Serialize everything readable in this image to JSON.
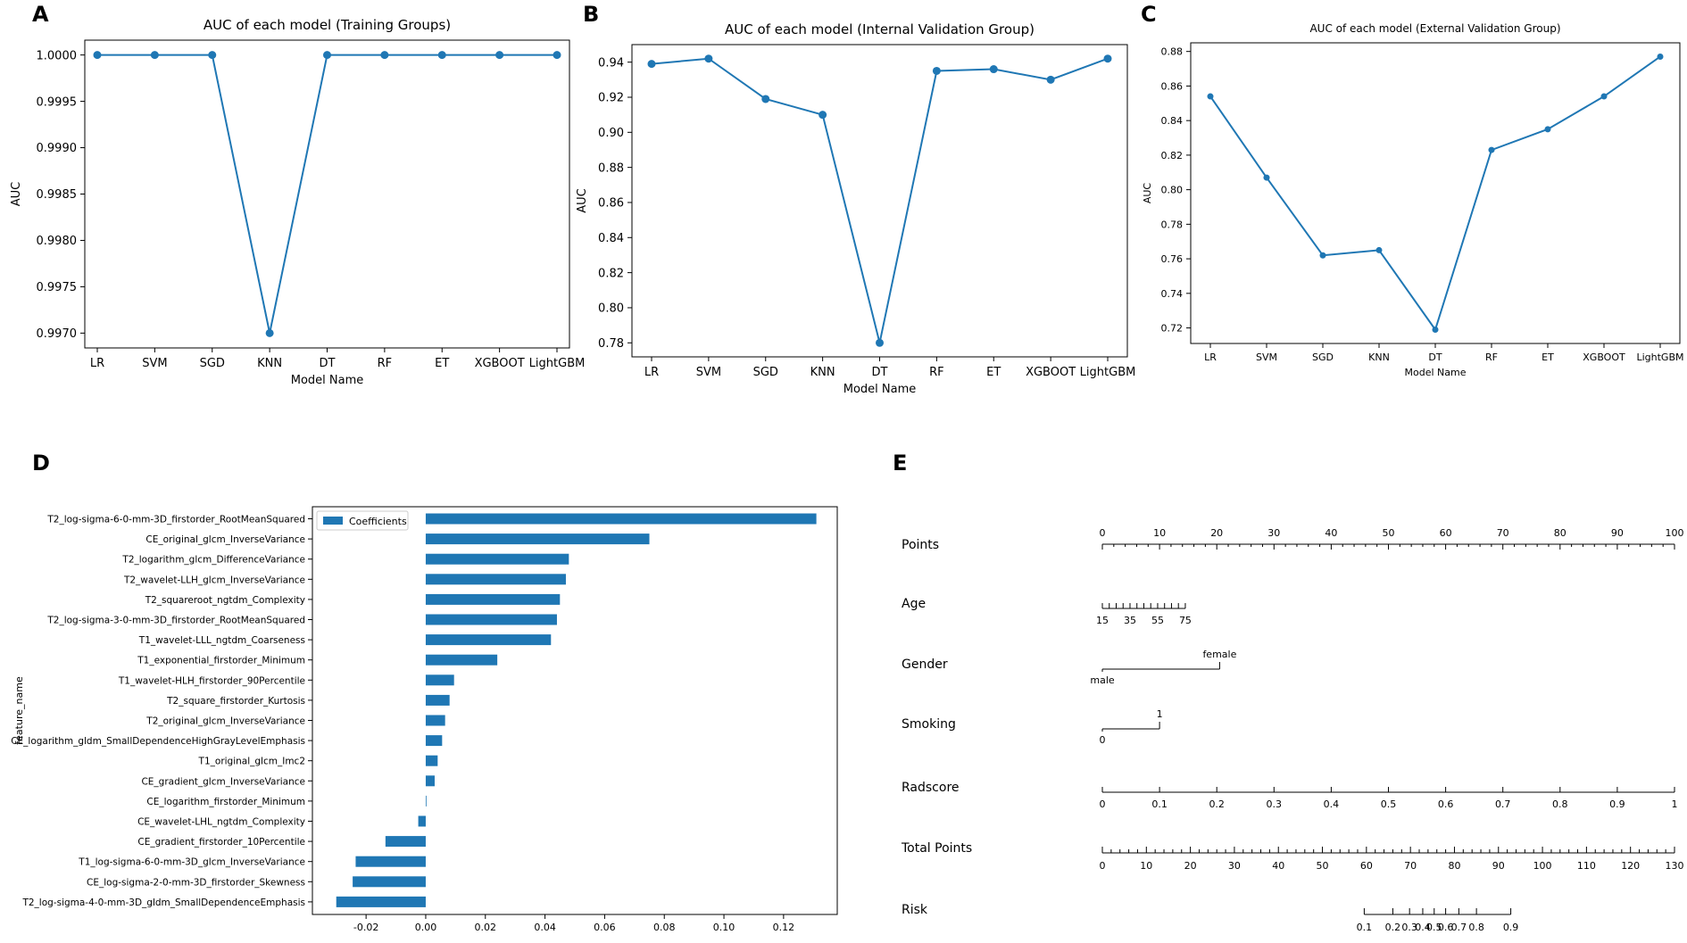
{
  "panel_labels": {
    "a": "A",
    "b": "B",
    "c": "C",
    "d": "D",
    "e": "E"
  },
  "chart_data": [
    {
      "type": "line",
      "title": "AUC of each model (Training Groups)",
      "xlabel": "Model Name",
      "ylabel": "AUC",
      "categories": [
        "LR",
        "SVM",
        "SGD",
        "KNN",
        "DT",
        "RF",
        "ET",
        "XGBOOT",
        "LightGBM"
      ],
      "values": [
        1.0,
        1.0,
        1.0,
        0.997,
        1.0,
        1.0,
        1.0,
        1.0,
        1.0
      ],
      "ylim": [
        0.99684,
        1.00016
      ],
      "yticks": [
        0.997,
        0.9975,
        0.998,
        0.9985,
        0.999,
        0.9995,
        1.0
      ],
      "ytick_labels": [
        "0.9970",
        "0.9975",
        "0.9980",
        "0.9985",
        "0.9990",
        "0.9995",
        "1.0000"
      ],
      "color": "#1f77b4"
    },
    {
      "type": "line",
      "title": "AUC of each model (Internal Validation Group)",
      "xlabel": "Model Name",
      "ylabel": "AUC",
      "categories": [
        "LR",
        "SVM",
        "SGD",
        "KNN",
        "DT",
        "RF",
        "ET",
        "XGBOOT",
        "LightGBM"
      ],
      "values": [
        0.939,
        0.942,
        0.919,
        0.91,
        0.78,
        0.935,
        0.936,
        0.93,
        0.942
      ],
      "ylim": [
        0.772,
        0.95
      ],
      "yticks": [
        0.78,
        0.8,
        0.82,
        0.84,
        0.86,
        0.88,
        0.9,
        0.92,
        0.94
      ],
      "ytick_labels": [
        "0.78",
        "0.80",
        "0.82",
        "0.84",
        "0.86",
        "0.88",
        "0.90",
        "0.92",
        "0.94"
      ],
      "color": "#1f77b4"
    },
    {
      "type": "line",
      "title": "AUC of each model (External Validation Group)",
      "xlabel": "Model Name",
      "ylabel": "AUC",
      "categories": [
        "LR",
        "SVM",
        "SGD",
        "KNN",
        "DT",
        "RF",
        "ET",
        "XGBOOT",
        "LightGBM"
      ],
      "values": [
        0.854,
        0.807,
        0.762,
        0.765,
        0.719,
        0.823,
        0.835,
        0.854,
        0.877
      ],
      "ylim": [
        0.711,
        0.885
      ],
      "yticks": [
        0.72,
        0.74,
        0.76,
        0.78,
        0.8,
        0.82,
        0.84,
        0.86,
        0.88
      ],
      "ytick_labels": [
        "0.72",
        "0.74",
        "0.76",
        "0.78",
        "0.80",
        "0.82",
        "0.84",
        "0.86",
        "0.88"
      ],
      "color": "#1f77b4"
    },
    {
      "type": "bar",
      "orientation": "horizontal",
      "ylabel": "feature_name",
      "legend": "Coefficients",
      "legend_position": "top-left",
      "categories": [
        "T2_log-sigma-6-0-mm-3D_firstorder_RootMeanSquared",
        "CE_original_glcm_InverseVariance",
        "T2_logarithm_glcm_DifferenceVariance",
        "T2_wavelet-LLH_glcm_InverseVariance",
        "T2_squareroot_ngtdm_Complexity",
        "T2_log-sigma-3-0-mm-3D_firstorder_RootMeanSquared",
        "T1_wavelet-LLL_ngtdm_Coarseness",
        "T1_exponential_firstorder_Minimum",
        "T1_wavelet-HLH_firstorder_90Percentile",
        "T2_square_firstorder_Kurtosis",
        "T2_original_glcm_InverseVariance",
        "CE_logarithm_gldm_SmallDependenceHighGrayLevelEmphasis",
        "T1_original_glcm_Imc2",
        "CE_gradient_glcm_InverseVariance",
        "CE_logarithm_firstorder_Minimum",
        "CE_wavelet-LHL_ngtdm_Complexity",
        "CE_gradient_firstorder_10Percentile",
        "T1_log-sigma-6-0-mm-3D_glcm_InverseVariance",
        "CE_log-sigma-2-0-mm-3D_firstorder_Skewness",
        "T2_log-sigma-4-0-mm-3D_gldm_SmallDependenceEmphasis"
      ],
      "values": [
        0.131,
        0.075,
        0.048,
        0.047,
        0.045,
        0.044,
        0.042,
        0.024,
        0.0095,
        0.008,
        0.0065,
        0.0055,
        0.004,
        0.003,
        0.0002,
        -0.0025,
        -0.0135,
        -0.0235,
        -0.0245,
        -0.03
      ],
      "xlim": [
        -0.038,
        0.138
      ],
      "xticks": [
        -0.02,
        0.0,
        0.02,
        0.04,
        0.06,
        0.08,
        0.1,
        0.12
      ],
      "xtick_labels": [
        "-0.02",
        "0.00",
        "0.02",
        "0.04",
        "0.06",
        "0.08",
        "0.10",
        "0.12"
      ],
      "color": "#1f77b4"
    },
    {
      "type": "nomogram",
      "points": {
        "label": "Points",
        "min": 0,
        "max": 100,
        "ticks": [
          0,
          10,
          20,
          30,
          40,
          50,
          60,
          70,
          80,
          90,
          100
        ],
        "tick_labels": [
          "0",
          "10",
          "20",
          "30",
          "40",
          "50",
          "60",
          "70",
          "80",
          "90",
          "100"
        ]
      },
      "rows": [
        {
          "label": "Age",
          "scale": [
            {
              "value": 15,
              "points": 0
            },
            {
              "value": 75,
              "points": 14.5
            }
          ],
          "minor_step": 5,
          "tick_values": [
            15,
            35,
            55,
            75
          ],
          "tick_labels": [
            "15",
            "35",
            "55",
            "75"
          ]
        },
        {
          "label": "Gender",
          "levels": [
            {
              "name": "male",
              "points": 0,
              "side": "below"
            },
            {
              "name": "female",
              "points": 20.5,
              "side": "above"
            }
          ]
        },
        {
          "label": "Smoking",
          "levels": [
            {
              "name": "0",
              "points": 0,
              "side": "below"
            },
            {
              "name": "1",
              "points": 10,
              "side": "above"
            }
          ]
        },
        {
          "label": "Radscore",
          "scale": [
            {
              "value": 0,
              "points": 0
            },
            {
              "value": 1,
              "points": 100
            }
          ],
          "minor_step": 0.1,
          "tick_values": [
            0,
            0.1,
            0.2,
            0.3,
            0.4,
            0.5,
            0.6,
            0.7,
            0.8,
            0.9,
            1
          ],
          "tick_labels": [
            "0",
            "0.1",
            "0.2",
            "0.3",
            "0.4",
            "0.5",
            "0.6",
            "0.7",
            "0.8",
            "0.9",
            "1"
          ]
        }
      ],
      "total_points": {
        "label": "Total Points",
        "min": 0,
        "max": 130,
        "minor_step": 2,
        "ticks": [
          0,
          10,
          20,
          30,
          40,
          50,
          60,
          70,
          80,
          90,
          100,
          110,
          120,
          130
        ],
        "tick_labels": [
          "0",
          "10",
          "20",
          "30",
          "40",
          "50",
          "60",
          "70",
          "80",
          "90",
          "100",
          "110",
          "120",
          "130"
        ]
      },
      "risk": {
        "label": "Risk",
        "ticks": [
          {
            "label": "0.1",
            "total": 59.5
          },
          {
            "label": "0.2",
            "total": 66
          },
          {
            "label": "0.3",
            "total": 69.8
          },
          {
            "label": "0.4",
            "total": 72.8
          },
          {
            "label": "0.5",
            "total": 75.4
          },
          {
            "label": "0.6",
            "total": 78
          },
          {
            "label": "0.7",
            "total": 81
          },
          {
            "label": "0.8",
            "total": 85
          },
          {
            "label": "0.9",
            "total": 92.8
          }
        ]
      }
    }
  ]
}
